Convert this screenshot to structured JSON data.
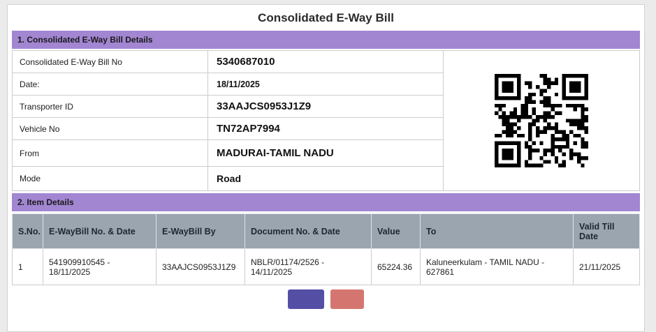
{
  "page": {
    "title": "Consolidated E-Way Bill"
  },
  "colors": {
    "page-bg": "#ebebeb",
    "section-header-bg": "#a286d2",
    "table-header-bg": "#9aa5af",
    "border": "#cccccc",
    "primary-button": "#544fa5",
    "secondary-button": "#d4766f"
  },
  "section1": {
    "heading": "1. Consolidated E-Way Bill Details",
    "fields": [
      {
        "label": "Consolidated E-Way Bill No",
        "value": "5340687010"
      },
      {
        "label": "Date:",
        "value": "18/11/2025"
      },
      {
        "label": "Transporter ID",
        "value": "33AAJCS0953J1Z9"
      },
      {
        "label": "Vehicle No",
        "value": "TN72AP7994"
      },
      {
        "label": "From",
        "value": "MADURAI-TAMIL NADU"
      },
      {
        "label": "Mode",
        "value": "Road"
      }
    ],
    "qr_label": "qr-code"
  },
  "section2": {
    "heading": "2. Item Details",
    "table": {
      "headers": [
        "S.No.",
        "E-WayBill No. & Date",
        "E-WayBill By",
        "Document No. & Date",
        "Value",
        "To",
        "Valid Till Date"
      ],
      "rows": [
        [
          "1",
          "541909910545 - 18/11/2025",
          "33AAJCS0953J1Z9",
          "NBLR/01174/2526 - 14/11/2025",
          "65224.36",
          "Kaluneerkulam - TAMIL NADU - 627861",
          "21/11/2025"
        ]
      ]
    }
  }
}
